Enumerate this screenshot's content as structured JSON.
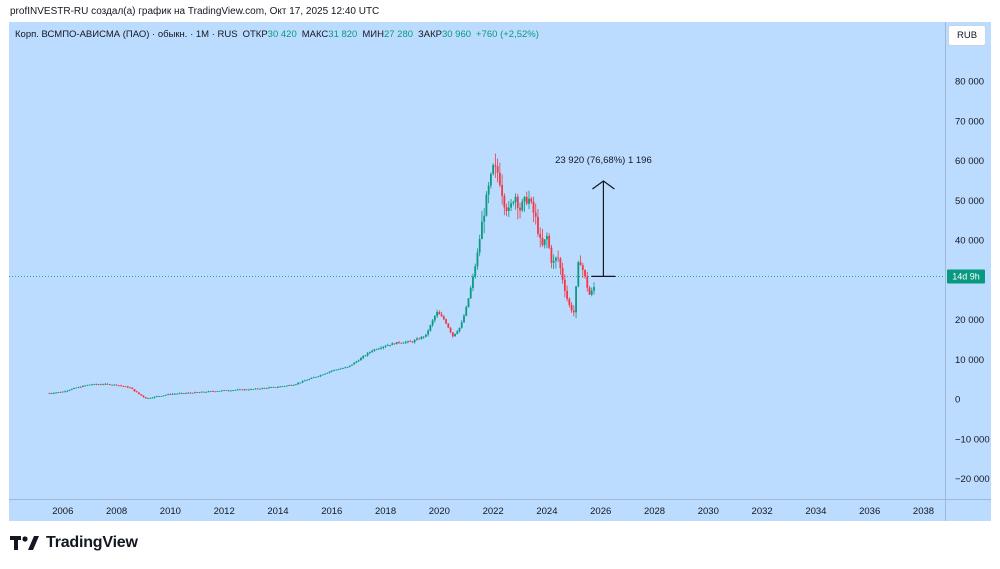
{
  "header": {
    "caption": "profINVESTR-RU создал(а) график на TradingView.com, Окт 17, 2025 12:40 UTC"
  },
  "legend": {
    "symbol": "Корп. ВСМПО-АВИСМА (ПАО) · обыкн. · 1М · RUS",
    "open_label": "ОТКР",
    "open_value": "30 420",
    "high_label": "МАКС",
    "high_value": "31 820",
    "low_label": "МИН",
    "low_value": "27 280",
    "close_label": "ЗАКР",
    "close_value": "30 960",
    "change": "+760 (+2,52%)"
  },
  "currency_button": "RUB",
  "price_tag": "14d 9h",
  "measure_label": "23 920 (76,68%) 1 196",
  "footer": {
    "logo_text": "TradingView"
  },
  "colors": {
    "background": "#bcdcff",
    "up": "#089981",
    "down": "#f23645",
    "price_line": "#089981",
    "axis_text": "#131722"
  },
  "chart_data": {
    "type": "candlestick",
    "title": "",
    "xlabel": "",
    "ylabel": "",
    "ylim": [
      -25000,
      95000
    ],
    "xlim": [
      2004.0,
      2038.8
    ],
    "y_ticks": [
      80000,
      70000,
      60000,
      50000,
      40000,
      30000,
      20000,
      10000,
      0,
      -10000,
      -20000
    ],
    "y_tick_labels": [
      "80 000",
      "70 000",
      "60 000",
      "50 000",
      "40 000",
      "30 000",
      "20 000",
      "10 000",
      "0",
      "−10 000",
      "−20 000"
    ],
    "x_ticks": [
      2006,
      2008,
      2010,
      2012,
      2014,
      2016,
      2018,
      2020,
      2022,
      2024,
      2026,
      2028,
      2030,
      2032,
      2034,
      2036,
      2038
    ],
    "current_price": 30960,
    "price_points": [
      [
        2005.5,
        1600
      ],
      [
        2006.0,
        2000
      ],
      [
        2006.5,
        3000
      ],
      [
        2007.0,
        3800
      ],
      [
        2007.5,
        3900
      ],
      [
        2008.0,
        3700
      ],
      [
        2008.5,
        3000
      ],
      [
        2008.8,
        1500
      ],
      [
        2009.1,
        300
      ],
      [
        2009.5,
        800
      ],
      [
        2010.0,
        1400
      ],
      [
        2011.0,
        1800
      ],
      [
        2012.0,
        2300
      ],
      [
        2013.0,
        2600
      ],
      [
        2014.0,
        3200
      ],
      [
        2014.6,
        3800
      ],
      [
        2015.0,
        4800
      ],
      [
        2015.6,
        6200
      ],
      [
        2016.0,
        7300
      ],
      [
        2016.6,
        8200
      ],
      [
        2017.0,
        10000
      ],
      [
        2017.5,
        12400
      ],
      [
        2018.0,
        13600
      ],
      [
        2018.5,
        14400
      ],
      [
        2019.0,
        14600
      ],
      [
        2019.5,
        16200
      ],
      [
        2019.9,
        22000
      ],
      [
        2020.2,
        20000
      ],
      [
        2020.5,
        16000
      ],
      [
        2020.8,
        18500
      ],
      [
        2021.0,
        23000
      ],
      [
        2021.2,
        29000
      ],
      [
        2021.4,
        36000
      ],
      [
        2021.6,
        45000
      ],
      [
        2021.8,
        52000
      ],
      [
        2022.0,
        58000
      ],
      [
        2022.2,
        57000
      ],
      [
        2022.4,
        50000
      ],
      [
        2022.6,
        47000
      ],
      [
        2022.8,
        52000
      ],
      [
        2023.0,
        48000
      ],
      [
        2023.3,
        51000
      ],
      [
        2023.6,
        45000
      ],
      [
        2023.8,
        38000
      ],
      [
        2024.0,
        41000
      ],
      [
        2024.2,
        34000
      ],
      [
        2024.4,
        36000
      ],
      [
        2024.6,
        30000
      ],
      [
        2024.8,
        24000
      ],
      [
        2025.0,
        22000
      ],
      [
        2025.2,
        36000
      ],
      [
        2025.4,
        31000
      ],
      [
        2025.6,
        26000
      ],
      [
        2025.8,
        29000
      ]
    ],
    "measure": {
      "x": 2026.1,
      "from": 31000,
      "to": 55000
    },
    "annotations": [
      "23 920 (76,68%) 1 196"
    ]
  }
}
